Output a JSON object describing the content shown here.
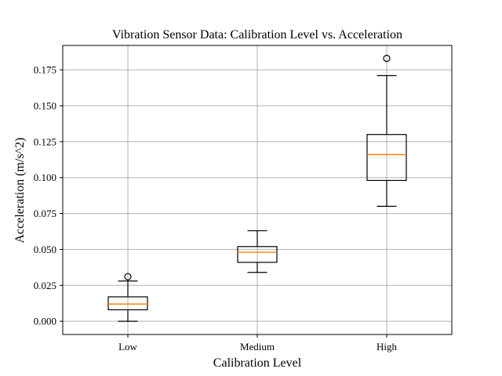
{
  "chart_data": {
    "type": "box",
    "title": "Vibration Sensor Data: Calibration Level vs. Acceleration",
    "xlabel": "Calibration Level",
    "ylabel": "Acceleration (m/s^2)",
    "categories": [
      "Low",
      "Medium",
      "High"
    ],
    "ylim": [
      -0.0092,
      0.192
    ],
    "yticks": [
      0.0,
      0.025,
      0.05,
      0.075,
      0.1,
      0.125,
      0.15,
      0.175
    ],
    "ytick_labels": [
      "0.000",
      "0.025",
      "0.050",
      "0.075",
      "0.100",
      "0.125",
      "0.150",
      "0.175"
    ],
    "grid": true,
    "boxes": [
      {
        "category": "Low",
        "whisker_low": 0.0,
        "q1": 0.008,
        "median": 0.012,
        "q3": 0.017,
        "whisker_high": 0.028,
        "outliers": [
          0.031
        ]
      },
      {
        "category": "Medium",
        "whisker_low": 0.034,
        "q1": 0.041,
        "median": 0.048,
        "q3": 0.052,
        "whisker_high": 0.063,
        "outliers": []
      },
      {
        "category": "High",
        "whisker_low": 0.08,
        "q1": 0.098,
        "median": 0.116,
        "q3": 0.13,
        "whisker_high": 0.171,
        "outliers": [
          0.183
        ]
      }
    ],
    "colors": {
      "box": "#000000",
      "median": "#ff7f0e",
      "grid": "#b0b0b0"
    }
  }
}
